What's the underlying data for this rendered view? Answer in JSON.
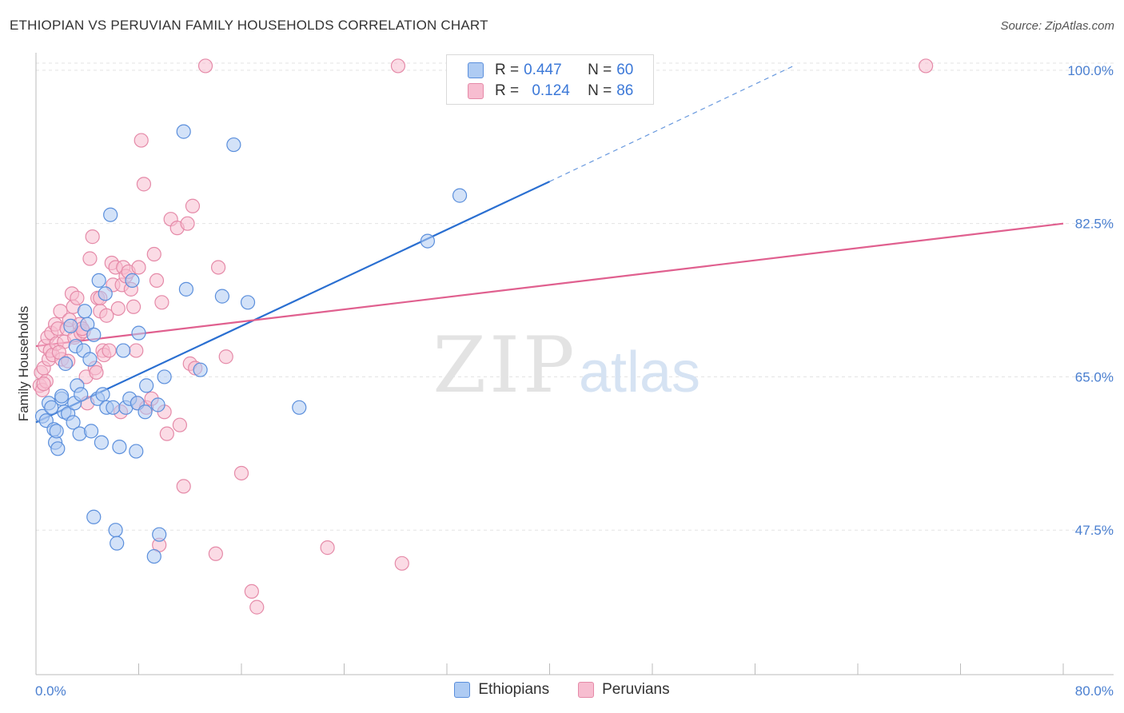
{
  "title": "ETHIOPIAN VS PERUVIAN FAMILY HOUSEHOLDS CORRELATION CHART",
  "source": "Source: ZipAtlas.com",
  "watermark": {
    "zip": "ZIP",
    "atlas": "atlas"
  },
  "legend_top": {
    "r_label": "R =",
    "n_label": "N =",
    "ethiopians": {
      "r": "0.447",
      "n": "60"
    },
    "peruvians": {
      "r": "0.124",
      "n": "86"
    }
  },
  "colors": {
    "ethiopians_fill": "#aecbf3",
    "ethiopians_stroke": "#5b8fdc",
    "ethiopians_line": "#2a6fd1",
    "peruvians_fill": "#f7bdd0",
    "peruvians_stroke": "#e58aa8",
    "peruvians_line": "#e0608f",
    "tick_text": "#4a7fd0",
    "grid": "#e3e3e3"
  },
  "chart_data": {
    "type": "scatter",
    "title": "ETHIOPIAN VS PERUVIAN FAMILY HOUSEHOLDS CORRELATION CHART",
    "xlabel": "",
    "ylabel": "Family Households",
    "xlim": [
      0,
      80
    ],
    "ylim": [
      31,
      102
    ],
    "x_tick_labels": [
      {
        "value": 0,
        "label": "0.0%"
      },
      {
        "value": 80,
        "label": "80.0%"
      }
    ],
    "y_tick_labels": [
      {
        "value": 47.5,
        "label": "47.5%"
      },
      {
        "value": 65.0,
        "label": "65.0%"
      },
      {
        "value": 82.5,
        "label": "82.5%"
      },
      {
        "value": 100.0,
        "label": "100.0%"
      }
    ],
    "grid": true,
    "legend_position": "bottom",
    "series": [
      {
        "name": "Ethiopians",
        "trend": {
          "x": [
            0,
            40,
            59
          ],
          "y": [
            59.8,
            87.3,
            100.5
          ],
          "dashed_from_x": 40
        },
        "points": [
          [
            0.5,
            60.5
          ],
          [
            0.8,
            60.0
          ],
          [
            1.0,
            62.0
          ],
          [
            1.2,
            61.5
          ],
          [
            1.5,
            57.5
          ],
          [
            1.7,
            56.8
          ],
          [
            1.4,
            59.0
          ],
          [
            1.6,
            58.8
          ],
          [
            2.0,
            62.5
          ],
          [
            2.2,
            61.0
          ],
          [
            2.3,
            66.5
          ],
          [
            2.5,
            60.8
          ],
          [
            2.7,
            70.8
          ],
          [
            2.9,
            59.8
          ],
          [
            3.0,
            62.0
          ],
          [
            3.1,
            68.5
          ],
          [
            3.2,
            64.0
          ],
          [
            3.4,
            58.5
          ],
          [
            3.5,
            63.0
          ],
          [
            3.7,
            68.0
          ],
          [
            3.8,
            72.5
          ],
          [
            4.0,
            71.0
          ],
          [
            4.2,
            67.0
          ],
          [
            4.3,
            58.8
          ],
          [
            4.5,
            69.8
          ],
          [
            4.8,
            62.5
          ],
          [
            4.9,
            76.0
          ],
          [
            5.1,
            57.5
          ],
          [
            5.2,
            63.0
          ],
          [
            5.4,
            74.5
          ],
          [
            5.5,
            61.5
          ],
          [
            5.8,
            83.5
          ],
          [
            6.0,
            61.5
          ],
          [
            6.2,
            47.5
          ],
          [
            6.3,
            46.0
          ],
          [
            6.5,
            57.0
          ],
          [
            6.8,
            68.0
          ],
          [
            7.0,
            61.5
          ],
          [
            7.3,
            62.5
          ],
          [
            7.5,
            76.0
          ],
          [
            7.8,
            56.5
          ],
          [
            7.9,
            62.0
          ],
          [
            8.0,
            70.0
          ],
          [
            8.5,
            61.0
          ],
          [
            8.6,
            64.0
          ],
          [
            9.2,
            44.5
          ],
          [
            9.5,
            61.8
          ],
          [
            9.6,
            47.0
          ],
          [
            10.0,
            65.0
          ],
          [
            11.5,
            93.0
          ],
          [
            11.7,
            75.0
          ],
          [
            12.8,
            65.8
          ],
          [
            14.5,
            74.2
          ],
          [
            15.4,
            91.5
          ],
          [
            16.5,
            73.5
          ],
          [
            20.5,
            61.5
          ],
          [
            4.5,
            49.0
          ],
          [
            2.0,
            62.8
          ],
          [
            30.5,
            80.5
          ],
          [
            33.0,
            85.7
          ]
        ]
      },
      {
        "name": "Peruvians",
        "trend": {
          "x": [
            0,
            80
          ],
          "y": [
            68.5,
            82.5
          ]
        },
        "points": [
          [
            0.3,
            64.0
          ],
          [
            0.4,
            65.5
          ],
          [
            0.5,
            63.5
          ],
          [
            0.6,
            66.0
          ],
          [
            0.7,
            68.5
          ],
          [
            0.8,
            64.5
          ],
          [
            0.9,
            69.5
          ],
          [
            1.0,
            67.0
          ],
          [
            1.1,
            68.0
          ],
          [
            1.2,
            70.0
          ],
          [
            1.3,
            67.5
          ],
          [
            1.5,
            71.0
          ],
          [
            1.6,
            68.8
          ],
          [
            1.7,
            70.5
          ],
          [
            1.9,
            72.5
          ],
          [
            2.0,
            67.0
          ],
          [
            2.2,
            69.0
          ],
          [
            2.4,
            70.5
          ],
          [
            2.5,
            66.8
          ],
          [
            2.6,
            71.5
          ],
          [
            2.8,
            74.5
          ],
          [
            2.9,
            73.0
          ],
          [
            3.0,
            69.5
          ],
          [
            3.2,
            74.0
          ],
          [
            3.4,
            71.0
          ],
          [
            3.5,
            70.0
          ],
          [
            3.7,
            70.2
          ],
          [
            3.9,
            65.0
          ],
          [
            4.0,
            62.0
          ],
          [
            4.2,
            78.5
          ],
          [
            4.4,
            81.0
          ],
          [
            4.6,
            66.0
          ],
          [
            4.7,
            65.5
          ],
          [
            4.8,
            74.0
          ],
          [
            5.0,
            72.5
          ],
          [
            5.2,
            68.0
          ],
          [
            5.3,
            67.5
          ],
          [
            5.5,
            72.0
          ],
          [
            5.7,
            68.0
          ],
          [
            5.9,
            78.0
          ],
          [
            6.0,
            75.5
          ],
          [
            6.2,
            77.5
          ],
          [
            6.4,
            72.8
          ],
          [
            6.6,
            61.0
          ],
          [
            6.7,
            75.5
          ],
          [
            6.8,
            77.5
          ],
          [
            7.0,
            76.5
          ],
          [
            7.2,
            77.0
          ],
          [
            7.4,
            75.0
          ],
          [
            7.6,
            73.0
          ],
          [
            7.8,
            68.0
          ],
          [
            7.9,
            62.0
          ],
          [
            8.0,
            77.5
          ],
          [
            8.2,
            92.0
          ],
          [
            8.4,
            87.0
          ],
          [
            8.6,
            61.5
          ],
          [
            9.0,
            62.5
          ],
          [
            9.2,
            79.0
          ],
          [
            9.4,
            76.0
          ],
          [
            9.6,
            45.8
          ],
          [
            9.8,
            73.5
          ],
          [
            10.0,
            61.0
          ],
          [
            10.2,
            58.5
          ],
          [
            10.5,
            83.0
          ],
          [
            11.0,
            82.0
          ],
          [
            11.2,
            59.5
          ],
          [
            11.5,
            52.5
          ],
          [
            11.8,
            82.5
          ],
          [
            12.0,
            66.5
          ],
          [
            12.2,
            84.5
          ],
          [
            12.4,
            66.0
          ],
          [
            13.2,
            100.5
          ],
          [
            14.0,
            44.8
          ],
          [
            14.2,
            77.5
          ],
          [
            14.8,
            67.3
          ],
          [
            16.0,
            54.0
          ],
          [
            16.8,
            40.5
          ],
          [
            17.2,
            38.7
          ],
          [
            22.7,
            45.5
          ],
          [
            28.2,
            100.5
          ],
          [
            28.5,
            43.7
          ],
          [
            69.3,
            100.5
          ],
          [
            0.6,
            64.2
          ],
          [
            1.8,
            67.8
          ],
          [
            3.6,
            70.5
          ],
          [
            5.0,
            74.0
          ]
        ]
      }
    ]
  }
}
